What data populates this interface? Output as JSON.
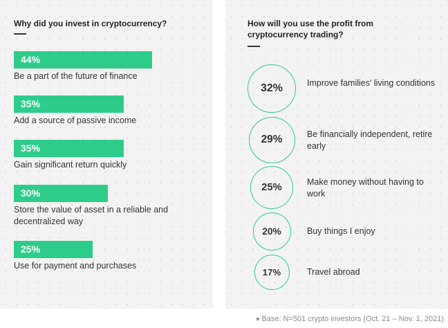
{
  "colors": {
    "accent": "#2ecc8a"
  },
  "chart_data": [
    {
      "type": "bar",
      "title": "Why did you invest in cryptocurrency?",
      "categories": [
        "Be a part of the future of finance",
        "Add a source of passive income",
        "Gain significant return quickly",
        "Store the value of asset in a reliable and decentralized way",
        "Use for payment and purchases"
      ],
      "values": [
        44,
        35,
        35,
        30,
        25
      ],
      "value_labels": [
        "44%",
        "35%",
        "35%",
        "30%",
        "25%"
      ],
      "xlim": [
        0,
        100
      ]
    },
    {
      "type": "bubble",
      "title": "How will you use the profit from cryptocurrency trading?",
      "categories": [
        "Improve families' living conditions",
        "Be financially independent, retire early",
        "Make money without having to work",
        "Buy things I enjoy",
        "Travel abroad"
      ],
      "values": [
        32,
        29,
        25,
        20,
        17
      ],
      "value_labels": [
        "32%",
        "29%",
        "25%",
        "20%",
        "17%"
      ]
    }
  ],
  "footnote": "Base: N=501 crypto investors (Oct. 21 – Nov. 1, 2021)"
}
